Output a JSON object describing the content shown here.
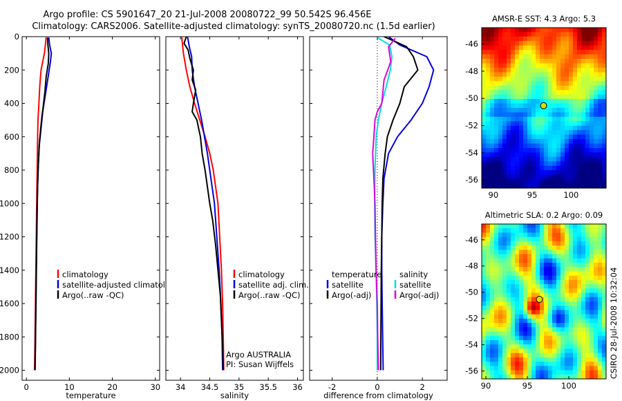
{
  "header": {
    "line1": "Argo profile: CS 5901647_20 21-Jul-2008 20080722_99 50.542S 96.456E",
    "line2": "Climatology: CARS2006. Satellite-adjusted climatology: synTS_20080720.nc (1.5d earlier)"
  },
  "footer": {
    "credit": "CSIRO 28-Jul-2008 10:32:04"
  },
  "colors": {
    "climatology": "#ff0000",
    "satellite": "#0000dd",
    "argo": "#000000",
    "sat_diff": "#00dddd",
    "argo_diff": "#dd00dd"
  },
  "chart_data": [
    {
      "type": "line",
      "id": "temperature",
      "xlabel": "temperature",
      "ylabel": "",
      "xlim": [
        -1,
        31
      ],
      "ylim": [
        2060,
        0
      ],
      "x_ticks": [
        0,
        10,
        20,
        30
      ],
      "y_ticks": [
        0,
        200,
        400,
        600,
        800,
        1000,
        1200,
        1400,
        1600,
        1800,
        2000
      ],
      "legend": [
        "climatology",
        "satellite-adjusted climatology",
        "Argo(..raw -QC)"
      ],
      "series": [
        {
          "name": "climatology",
          "color": "climatology",
          "points": [
            [
              4.6,
              5
            ],
            [
              4.4,
              50
            ],
            [
              4.2,
              100
            ],
            [
              3.8,
              150
            ],
            [
              3.4,
              200
            ],
            [
              3.1,
              300
            ],
            [
              2.9,
              400
            ],
            [
              2.7,
              500
            ],
            [
              2.6,
              600
            ],
            [
              2.5,
              800
            ],
            [
              2.4,
              1000
            ],
            [
              2.3,
              1200
            ],
            [
              2.2,
              1400
            ],
            [
              2.1,
              1600
            ],
            [
              2.0,
              1800
            ],
            [
              1.9,
              2000
            ]
          ]
        },
        {
          "name": "satellite-adjusted climatology",
          "color": "satellite",
          "points": [
            [
              5.2,
              5
            ],
            [
              5.4,
              50
            ],
            [
              5.8,
              100
            ],
            [
              5.6,
              150
            ],
            [
              5.0,
              250
            ],
            [
              4.4,
              350
            ],
            [
              3.8,
              450
            ],
            [
              3.4,
              550
            ],
            [
              3.0,
              650
            ],
            [
              2.7,
              800
            ],
            [
              2.5,
              1000
            ],
            [
              2.4,
              1200
            ],
            [
              2.3,
              1400
            ],
            [
              2.2,
              1600
            ],
            [
              2.1,
              1800
            ],
            [
              2.0,
              2000
            ]
          ]
        },
        {
          "name": "Argo(..raw -QC)",
          "color": "argo",
          "points": [
            [
              4.9,
              5
            ],
            [
              5.0,
              50
            ],
            [
              5.2,
              100
            ],
            [
              5.1,
              160
            ],
            [
              4.6,
              240
            ],
            [
              4.3,
              330
            ],
            [
              3.9,
              420
            ],
            [
              3.6,
              480
            ],
            [
              3.3,
              560
            ],
            [
              3.0,
              640
            ],
            [
              2.8,
              760
            ],
            [
              2.6,
              900
            ],
            [
              2.5,
              1050
            ],
            [
              2.4,
              1250
            ],
            [
              2.3,
              1450
            ],
            [
              2.2,
              1650
            ],
            [
              2.1,
              1850
            ],
            [
              2.0,
              2000
            ]
          ]
        }
      ]
    },
    {
      "type": "line",
      "id": "salinity",
      "xlabel": "salinity",
      "ylabel": "",
      "xlim": [
        33.75,
        36.1
      ],
      "ylim": [
        2060,
        0
      ],
      "x_ticks": [
        34,
        34.5,
        35,
        35.5,
        36
      ],
      "legend": [
        "climatology",
        "satellite adj. clim.",
        "Argo(..raw -QC)"
      ],
      "notes": [
        "Argo AUSTRALIA",
        "PI: Susan Wijffels"
      ],
      "series": [
        {
          "name": "climatology",
          "color": "climatology",
          "points": [
            [
              34.02,
              0
            ],
            [
              34.05,
              100
            ],
            [
              34.1,
              200
            ],
            [
              34.16,
              300
            ],
            [
              34.24,
              400
            ],
            [
              34.33,
              500
            ],
            [
              34.42,
              600
            ],
            [
              34.5,
              700
            ],
            [
              34.56,
              800
            ],
            [
              34.6,
              900
            ],
            [
              34.64,
              1000
            ],
            [
              34.67,
              1200
            ],
            [
              34.7,
              1400
            ],
            [
              34.72,
              1600
            ],
            [
              34.73,
              1800
            ],
            [
              34.74,
              2000
            ]
          ]
        },
        {
          "name": "satellite adj. clim.",
          "color": "satellite",
          "points": [
            [
              34.12,
              0
            ],
            [
              34.15,
              60
            ],
            [
              34.19,
              120
            ],
            [
              34.2,
              200
            ],
            [
              34.24,
              300
            ],
            [
              34.3,
              400
            ],
            [
              34.36,
              500
            ],
            [
              34.41,
              600
            ],
            [
              34.46,
              700
            ],
            [
              34.5,
              800
            ],
            [
              34.54,
              900
            ],
            [
              34.58,
              1000
            ],
            [
              34.62,
              1200
            ],
            [
              34.66,
              1400
            ],
            [
              34.69,
              1600
            ],
            [
              34.71,
              1800
            ],
            [
              34.72,
              2000
            ]
          ]
        },
        {
          "name": "Argo(..raw -QC)",
          "color": "argo",
          "points": [
            [
              34.1,
              0
            ],
            [
              34.06,
              40
            ],
            [
              34.13,
              80
            ],
            [
              34.16,
              130
            ],
            [
              34.22,
              200
            ],
            [
              34.2,
              260
            ],
            [
              34.26,
              320
            ],
            [
              34.22,
              400
            ],
            [
              34.2,
              450
            ],
            [
              34.28,
              500
            ],
            [
              34.31,
              550
            ],
            [
              34.34,
              600
            ],
            [
              34.37,
              700
            ],
            [
              34.42,
              800
            ],
            [
              34.46,
              900
            ],
            [
              34.5,
              1000
            ],
            [
              34.55,
              1100
            ],
            [
              34.6,
              1250
            ],
            [
              34.64,
              1400
            ],
            [
              34.68,
              1550
            ],
            [
              34.7,
              1700
            ],
            [
              34.72,
              1850
            ],
            [
              34.73,
              2000
            ]
          ]
        }
      ]
    },
    {
      "type": "line",
      "id": "difference",
      "xlabel": "difference from climatology",
      "ylabel": "",
      "xlim": [
        -3.0,
        3.1
      ],
      "ylim": [
        2060,
        0
      ],
      "x_ticks": [
        -2,
        0,
        2
      ],
      "legend_headers": [
        "temperature",
        "salinity"
      ],
      "legend": [
        "satellite",
        "Argo(-adj)",
        "satellite",
        "Argo(-adj)"
      ],
      "series": [
        {
          "name": "temperature satellite",
          "color": "satellite",
          "points": [
            [
              0.5,
              0
            ],
            [
              1.0,
              50
            ],
            [
              2.2,
              120
            ],
            [
              2.5,
              200
            ],
            [
              2.3,
              300
            ],
            [
              2.0,
              400
            ],
            [
              1.5,
              500
            ],
            [
              0.9,
              600
            ],
            [
              0.5,
              700
            ],
            [
              0.3,
              850
            ],
            [
              0.25,
              1000
            ],
            [
              0.2,
              1200
            ],
            [
              0.2,
              1400
            ],
            [
              0.22,
              1600
            ],
            [
              0.24,
              1800
            ],
            [
              0.26,
              2000
            ]
          ]
        },
        {
          "name": "temperature Argo(-adj)",
          "color": "argo",
          "points": [
            [
              0.3,
              0
            ],
            [
              1.3,
              60
            ],
            [
              1.6,
              120
            ],
            [
              1.8,
              200
            ],
            [
              1.2,
              300
            ],
            [
              1.0,
              400
            ],
            [
              0.7,
              500
            ],
            [
              0.45,
              600
            ],
            [
              0.35,
              700
            ],
            [
              0.25,
              850
            ],
            [
              0.22,
              1000
            ],
            [
              0.2,
              1200
            ],
            [
              0.18,
              1400
            ],
            [
              0.17,
              1600
            ],
            [
              0.16,
              1800
            ],
            [
              0.15,
              2000
            ]
          ]
        },
        {
          "name": "salinity satellite",
          "color": "sat_diff",
          "points": [
            [
              0.0,
              5
            ],
            [
              0.55,
              50
            ],
            [
              0.65,
              120
            ],
            [
              0.58,
              200
            ],
            [
              0.4,
              300
            ],
            [
              0.2,
              400
            ],
            [
              0.05,
              500
            ],
            [
              -0.05,
              600
            ],
            [
              -0.1,
              800
            ],
            [
              -0.12,
              1000
            ],
            [
              -0.1,
              1200
            ],
            [
              -0.05,
              1400
            ],
            [
              -0.02,
              1600
            ],
            [
              0.0,
              1800
            ],
            [
              0.0,
              2000
            ]
          ]
        },
        {
          "name": "salinity Argo(-adj)",
          "color": "argo_diff",
          "points": [
            [
              0.8,
              10
            ],
            [
              0.5,
              60
            ],
            [
              0.6,
              150
            ],
            [
              0.3,
              260
            ],
            [
              0.2,
              400
            ],
            [
              0.0,
              450
            ],
            [
              -0.1,
              500
            ],
            [
              -0.15,
              600
            ],
            [
              -0.2,
              700
            ],
            [
              -0.15,
              850
            ],
            [
              -0.1,
              1000
            ],
            [
              -0.08,
              1200
            ],
            [
              -0.05,
              1400
            ],
            [
              0.0,
              1600
            ],
            [
              0.02,
              1800
            ],
            [
              0.05,
              2000
            ]
          ]
        }
      ]
    },
    {
      "type": "heatmap",
      "id": "sst-map",
      "title": "AMSR-E SST: 4.3 Argo: 5.3",
      "xlim": [
        88.5,
        104.5
      ],
      "ylim": [
        -56.6,
        -44.8
      ],
      "x_ticks": [
        90,
        95,
        100
      ],
      "y_ticks": [
        -46,
        -48,
        -50,
        -52,
        -54,
        -56
      ],
      "marker": [
        96.456,
        -50.542
      ]
    },
    {
      "type": "heatmap",
      "id": "sla-map",
      "title": "Altimetric SLA: 0.2 Argo: 0.09",
      "xlim": [
        89.5,
        104.5
      ],
      "ylim": [
        -56.6,
        -44.8
      ],
      "x_ticks": [
        90,
        95,
        100
      ],
      "y_ticks": [
        -46,
        -48,
        -50,
        -52,
        -54,
        -56
      ],
      "marker": [
        96.456,
        -50.542
      ]
    }
  ]
}
